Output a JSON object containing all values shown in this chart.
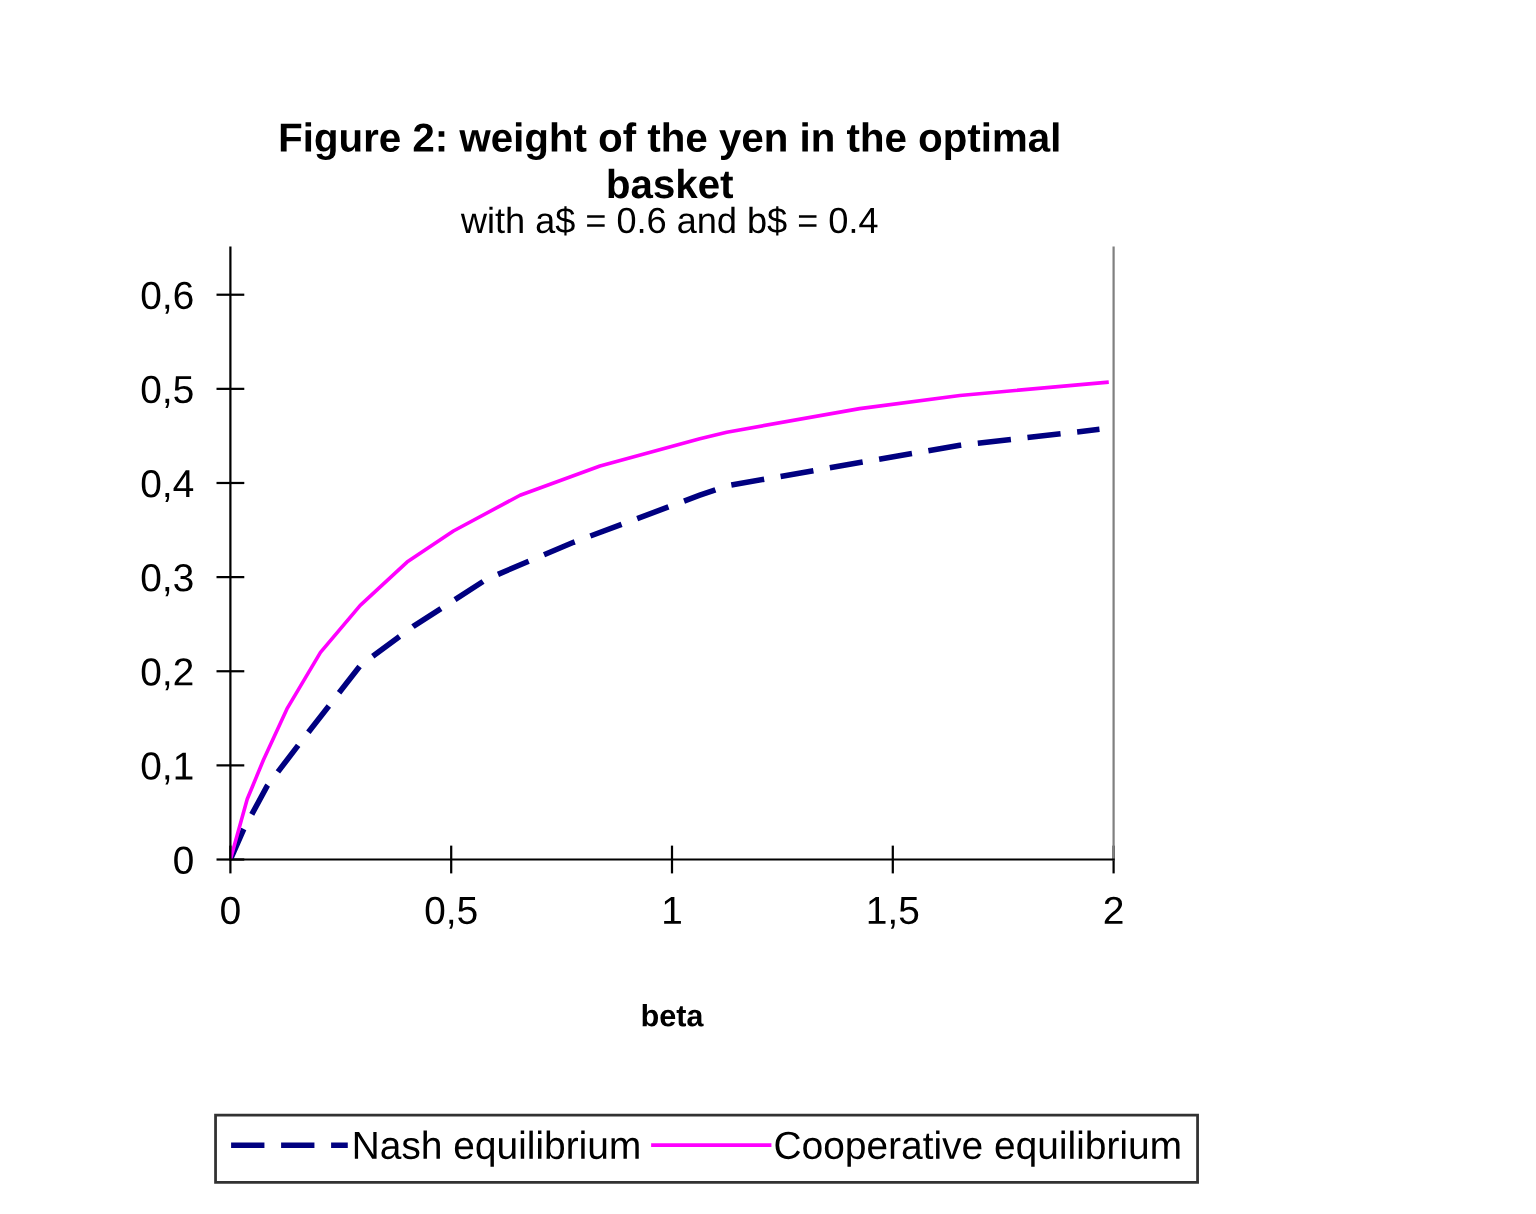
{
  "chart_data": {
    "type": "line",
    "title": "Figure 2: weight of the yen in the optimal\nbasket",
    "subtitle": "with a$ = 0.6 and b$ = 0.4",
    "xlabel": "beta",
    "xlim": [
      0,
      2
    ],
    "xticks": [
      0,
      {
        "value": 0.5,
        "label": "0,5"
      },
      1,
      {
        "value": 1.5,
        "label": "1,5"
      },
      2
    ],
    "ylim": [
      0,
      0.65
    ],
    "yticks": [
      0,
      {
        "value": 0.1,
        "label": "0,1"
      },
      {
        "value": 0.2,
        "label": "0,2"
      },
      {
        "value": 0.3,
        "label": "0,3"
      },
      {
        "value": 0.4,
        "label": "0,4"
      },
      {
        "value": 0.5,
        "label": "0,5"
      },
      {
        "value": 0.6,
        "label": "0,6"
      }
    ],
    "grid": false,
    "legend": "bottom",
    "marker": "none",
    "series": [
      {
        "name": "Nash equilibrium",
        "color": "#000080",
        "line_style": "dashed",
        "x": [
          0,
          0.03,
          0.083,
          0.158,
          0.294,
          0.415,
          0.581,
          0.777,
          1.063,
          1.124,
          1.38,
          1.652,
          1.968
        ],
        "values": [
          0,
          0.032,
          0.078,
          0.124,
          0.206,
          0.248,
          0.298,
          0.337,
          0.387,
          0.397,
          0.418,
          0.44,
          0.457
        ]
      },
      {
        "name": "Cooperative equilibrium",
        "color": "#ff00ff",
        "line_style": "solid",
        "x": [
          0,
          0.038,
          0.075,
          0.128,
          0.204,
          0.294,
          0.4,
          0.505,
          0.656,
          0.837,
          1.063,
          1.124,
          1.425,
          1.652,
          1.985
        ],
        "values": [
          0,
          0.064,
          0.106,
          0.16,
          0.22,
          0.27,
          0.316,
          0.349,
          0.387,
          0.418,
          0.447,
          0.454,
          0.479,
          0.493,
          0.507
        ]
      }
    ]
  }
}
